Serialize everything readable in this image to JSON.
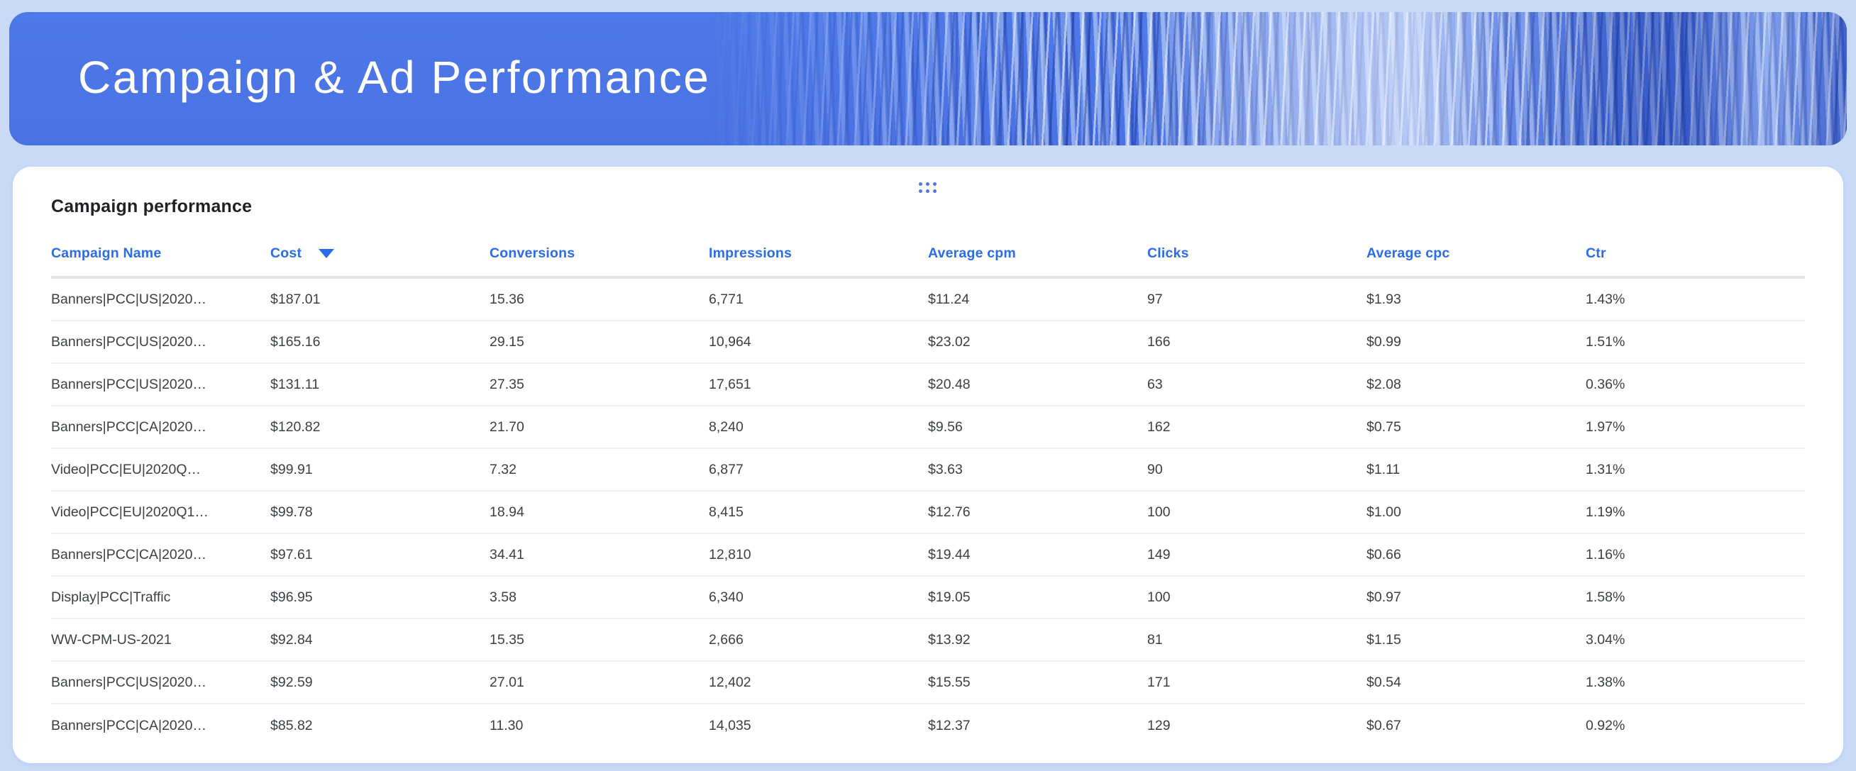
{
  "header": {
    "title": "Campaign & Ad Performance"
  },
  "card": {
    "title": "Campaign performance",
    "table": {
      "columns": [
        {
          "label": "Campaign Name"
        },
        {
          "label": "Cost",
          "sorted": "desc"
        },
        {
          "label": "Conversions"
        },
        {
          "label": "Impressions"
        },
        {
          "label": "Average cpm"
        },
        {
          "label": "Clicks"
        },
        {
          "label": "Average cpc"
        },
        {
          "label": "Ctr"
        }
      ],
      "rows": [
        [
          "Banners|PCC|US|2020…",
          "$187.01",
          "15.36",
          "6,771",
          "$11.24",
          "97",
          "$1.93",
          "1.43%"
        ],
        [
          "Banners|PCC|US|2020…",
          "$165.16",
          "29.15",
          "10,964",
          "$23.02",
          "166",
          "$0.99",
          "1.51%"
        ],
        [
          "Banners|PCC|US|2020…",
          "$131.11",
          "27.35",
          "17,651",
          "$20.48",
          "63",
          "$2.08",
          "0.36%"
        ],
        [
          "Banners|PCC|CA|2020…",
          "$120.82",
          "21.70",
          "8,240",
          "$9.56",
          "162",
          "$0.75",
          "1.97%"
        ],
        [
          "Video|PCC|EU|2020Q…",
          "$99.91",
          "7.32",
          "6,877",
          "$3.63",
          "90",
          "$1.11",
          "1.31%"
        ],
        [
          "Video|PCC|EU|2020Q1…",
          "$99.78",
          "18.94",
          "8,415",
          "$12.76",
          "100",
          "$1.00",
          "1.19%"
        ],
        [
          "Banners|PCC|CA|2020…",
          "$97.61",
          "34.41",
          "12,810",
          "$19.44",
          "149",
          "$0.66",
          "1.16%"
        ],
        [
          "Display|PCC|Traffic",
          "$96.95",
          "3.58",
          "6,340",
          "$19.05",
          "100",
          "$0.97",
          "1.58%"
        ],
        [
          "WW-CPM-US-2021",
          "$92.84",
          "15.35",
          "2,666",
          "$13.92",
          "81",
          "$1.15",
          "3.04%"
        ],
        [
          "Banners|PCC|US|2020…",
          "$92.59",
          "27.01",
          "12,402",
          "$15.55",
          "171",
          "$0.54",
          "1.38%"
        ],
        [
          "Banners|PCC|CA|2020…",
          "$85.82",
          "11.30",
          "14,035",
          "$12.37",
          "129",
          "$0.67",
          "0.92%"
        ]
      ]
    }
  },
  "icons": {
    "drag_handle": "drag-dots-grid",
    "sort_desc": "triangle-down"
  },
  "colors": {
    "page_background": "#c8daf6",
    "header_band_blue": "#4e79e8",
    "column_header_blue": "#2b6ce8",
    "cell_text": "#3c4043",
    "card_background": "#ffffff",
    "drag_dots_blue": "#4b79e8"
  }
}
